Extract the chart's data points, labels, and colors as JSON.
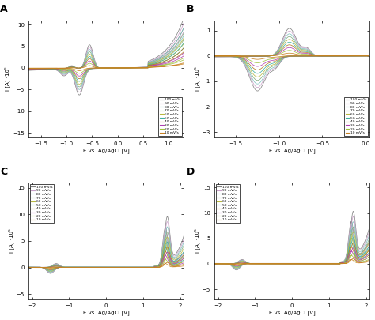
{
  "scan_rate_labels": [
    "100 mV/s",
    "90 mV/s",
    "80 mV/s",
    "70 mV/s",
    "60 mV/s",
    "50 mV/s",
    "40 mV/s",
    "30 mV/s",
    "20 mV/s",
    "10 mV/s"
  ],
  "colors_100_to_10": [
    "#7f7f7f",
    "#c8a0c8",
    "#7fbfbf",
    "#7faa7f",
    "#b8b840",
    "#40b0a0",
    "#b07820",
    "#b040b0",
    "#a0c040",
    "#c88020"
  ],
  "xlabel": "E vs. Ag/AgCl [V]",
  "A": {
    "xlim": [
      -1.75,
      1.3
    ],
    "ylim": [
      -16,
      11
    ],
    "yticks": [
      -15,
      -10,
      -5,
      0,
      5,
      10
    ],
    "xticks": [
      -1.5,
      -1.0,
      -0.5,
      0.0,
      0.5,
      1.0
    ],
    "ylabel": "I [A] ·10⁵"
  },
  "B": {
    "xlim": [
      -1.75,
      0.05
    ],
    "ylim": [
      -3.2,
      1.4
    ],
    "yticks": [
      -3,
      -2,
      -1,
      0,
      1
    ],
    "xticks": [
      -1.5,
      -1.0,
      -0.5,
      0.0
    ],
    "ylabel": "I [A] ·10⁵"
  },
  "C": {
    "xlim": [
      -2.1,
      2.1
    ],
    "ylim": [
      -6,
      16
    ],
    "yticks": [
      -5,
      0,
      5,
      10,
      15
    ],
    "xticks": [
      -2,
      -1,
      0,
      1,
      2
    ],
    "ylabel": "I [A] ·10⁵"
  },
  "D": {
    "xlim": [
      -2.1,
      2.1
    ],
    "ylim": [
      -7,
      16
    ],
    "yticks": [
      -5,
      0,
      5,
      10,
      15
    ],
    "xticks": [
      -2,
      -1,
      0,
      1,
      2
    ],
    "ylabel": "I [A] ·10⁵"
  }
}
